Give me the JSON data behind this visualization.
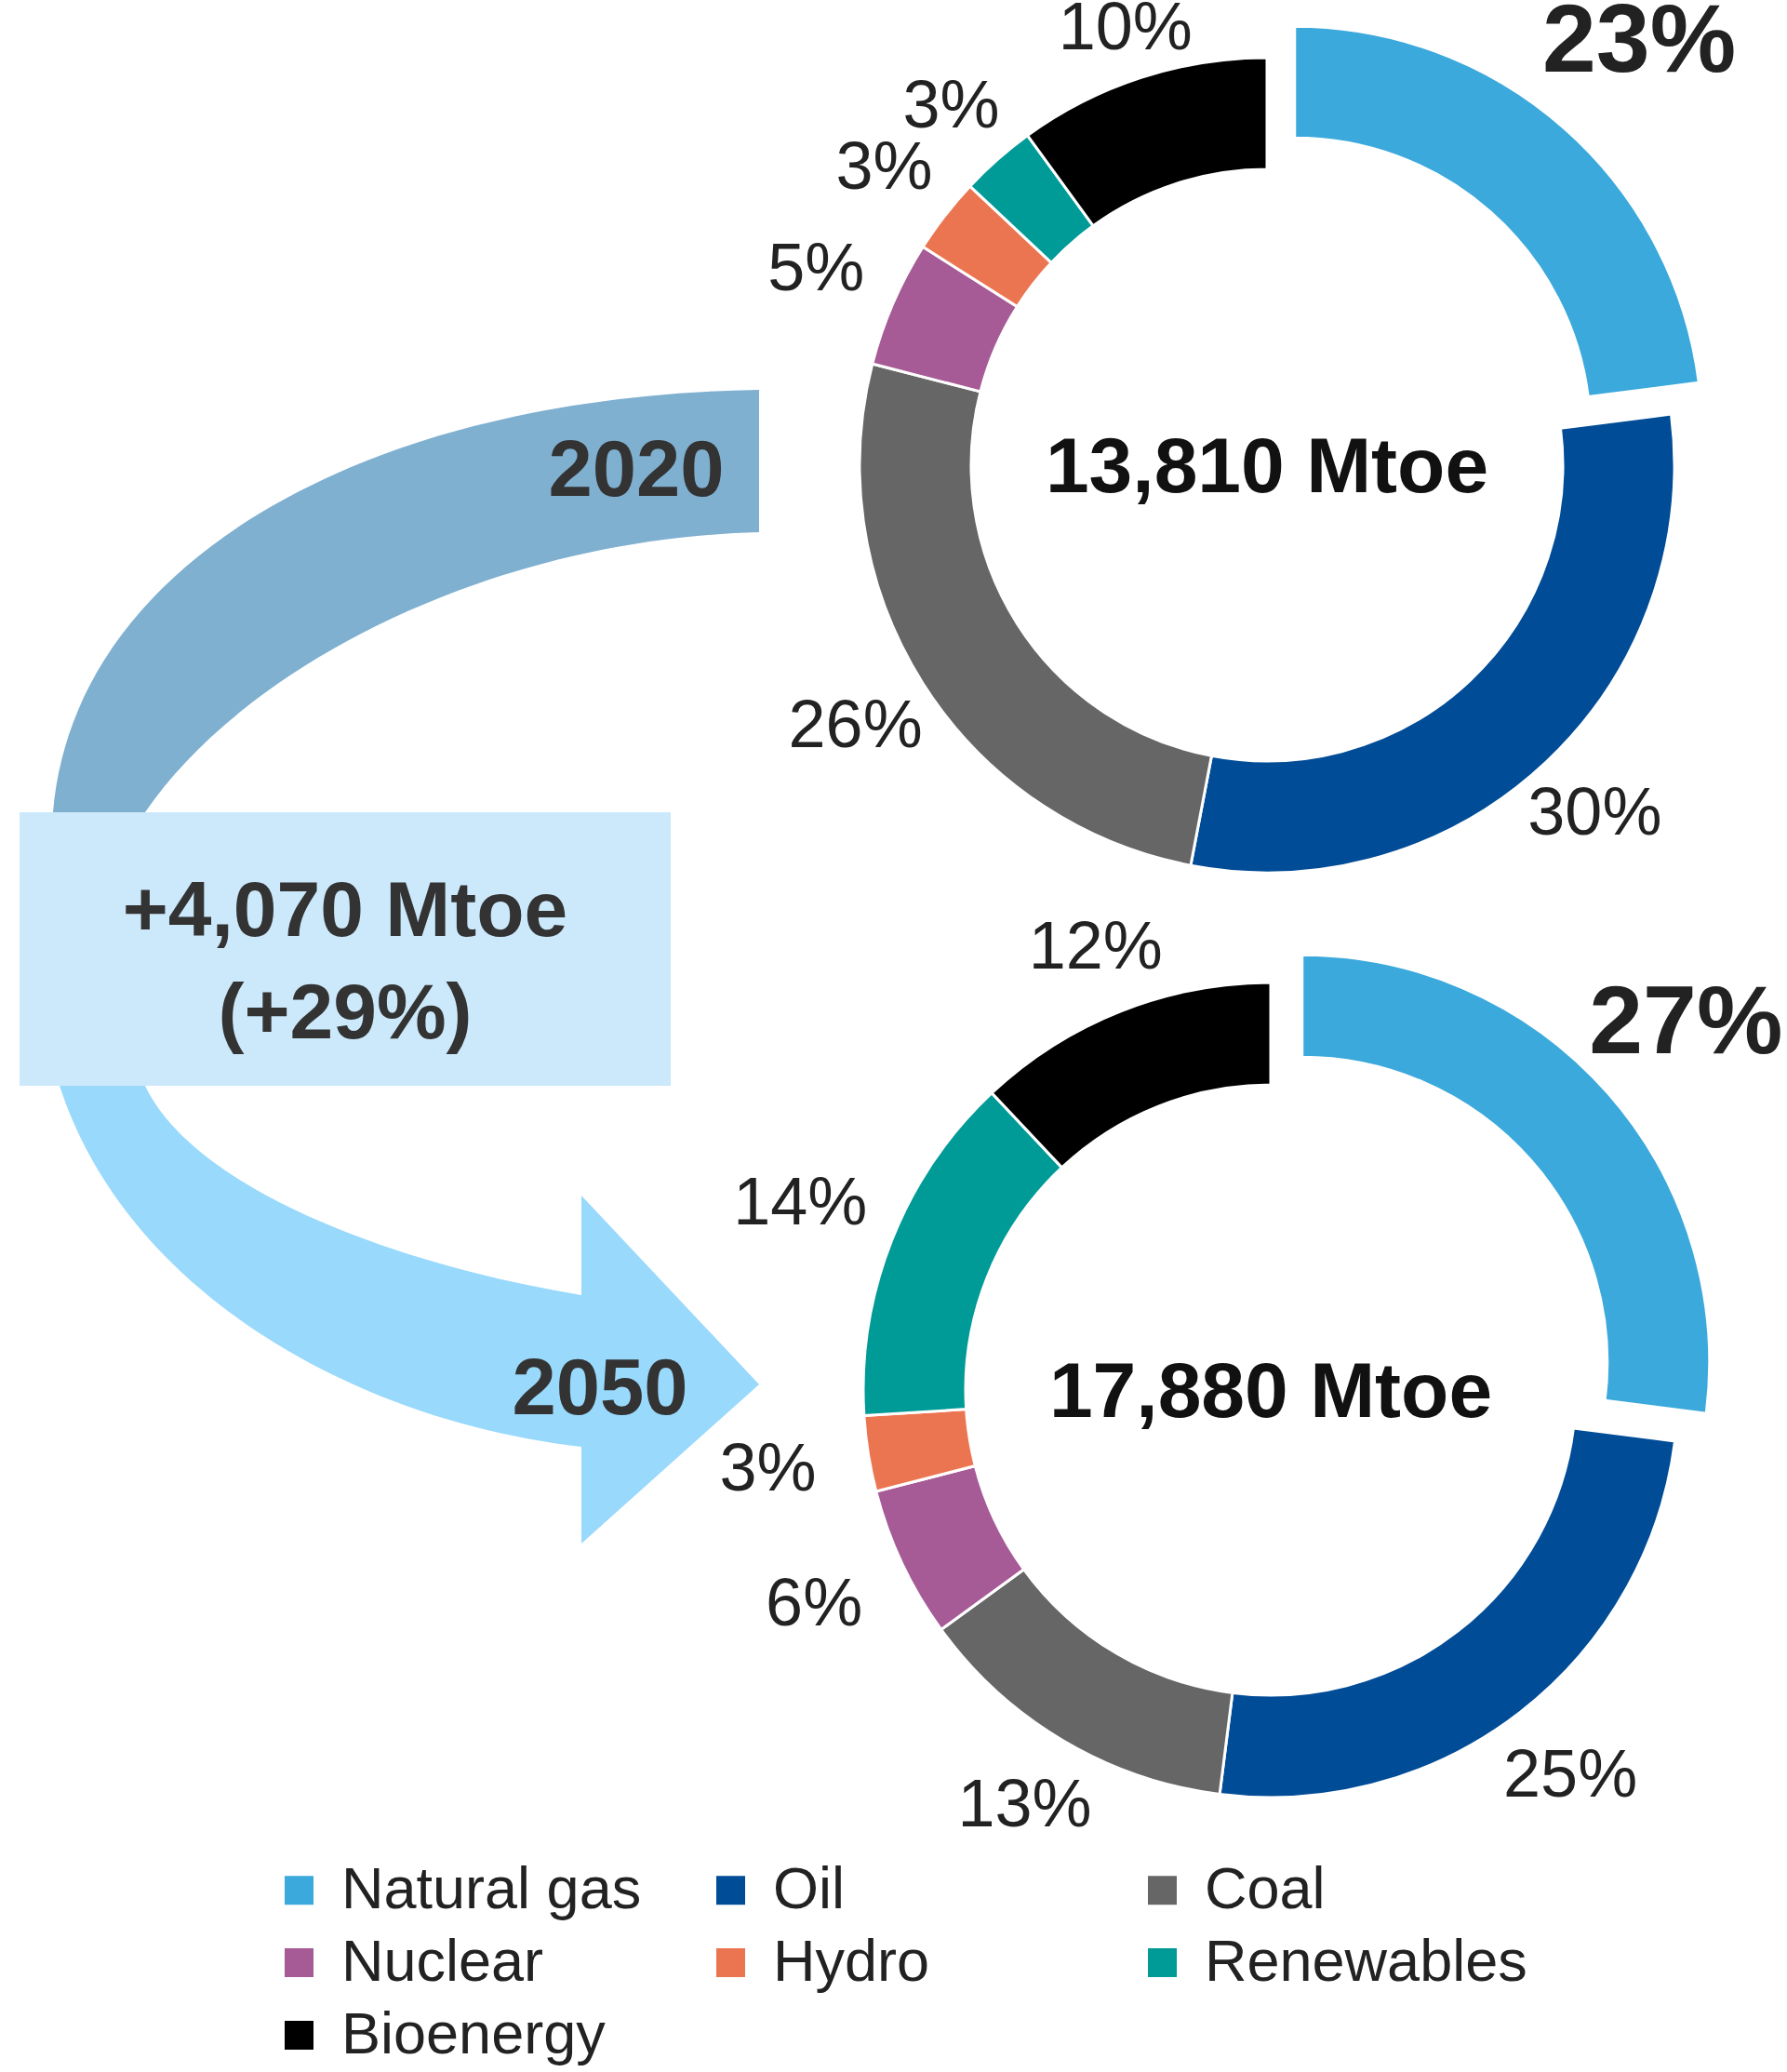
{
  "chart_data": {
    "type": "donut",
    "categories": [
      "Natural gas",
      "Oil",
      "Coal",
      "Nuclear",
      "Hydro",
      "Renewables",
      "Bioenergy"
    ],
    "colors": [
      "#3ba9dc",
      "#004c97",
      "#666666",
      "#a65b96",
      "#ec7551",
      "#009b97",
      "#000000"
    ],
    "series": [
      {
        "name": "2020",
        "values": [
          23,
          30,
          26,
          5,
          3,
          3,
          10
        ],
        "value_labels": [
          "23%",
          "30%",
          "26%",
          "5%",
          "3%",
          "3%",
          "10%"
        ]
      },
      {
        "name": "2050",
        "values": [
          27,
          25,
          13,
          6,
          3,
          14,
          12
        ],
        "value_labels": [
          "27%",
          "25%",
          "13%",
          "6%",
          "3%",
          "14%",
          "12%"
        ]
      }
    ],
    "annotations": [
      "13,810 Mtoe",
      "17,880 Mtoe",
      "+4,070 Mtoe (+29%)"
    ],
    "legend": "bottom"
  }
}
